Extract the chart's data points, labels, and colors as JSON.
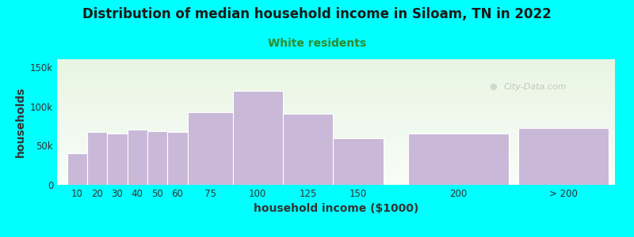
{
  "title": "Distribution of median household income in Siloam, TN in 2022",
  "subtitle": "White residents",
  "xlabel": "household income ($1000)",
  "ylabel": "households",
  "background_color": "#00FFFF",
  "plot_bg_gradient_top": "#e8f5e2",
  "plot_bg_gradient_bottom": "#f8fdf8",
  "bar_color": "#c9b8d8",
  "bar_edge_color": "#ffffff",
  "ytick_labels": [
    "0",
    "50k",
    "100k",
    "150k"
  ],
  "ytick_values": [
    0,
    50000,
    100000,
    150000
  ],
  "ylim": [
    0,
    160000
  ],
  "categories": [
    "10",
    "20",
    "30",
    "40",
    "50",
    "60",
    "75",
    "100",
    "125",
    "150",
    "200",
    "> 200"
  ],
  "values": [
    40000,
    67000,
    65000,
    70000,
    68000,
    67000,
    93000,
    120000,
    91000,
    59000,
    65000,
    72000
  ],
  "lefts": [
    5,
    15,
    25,
    35,
    45,
    55,
    65,
    87.5,
    112.5,
    137.5,
    175,
    230
  ],
  "widths": [
    10,
    10,
    10,
    10,
    10,
    10,
    22.5,
    25,
    25,
    25,
    50,
    45
  ],
  "xlim": [
    0,
    278
  ],
  "watermark": "City-Data.com",
  "title_fontsize": 12,
  "subtitle_fontsize": 10,
  "subtitle_color": "#2e8b2e",
  "axis_label_fontsize": 10,
  "tick_fontsize": 8.5
}
